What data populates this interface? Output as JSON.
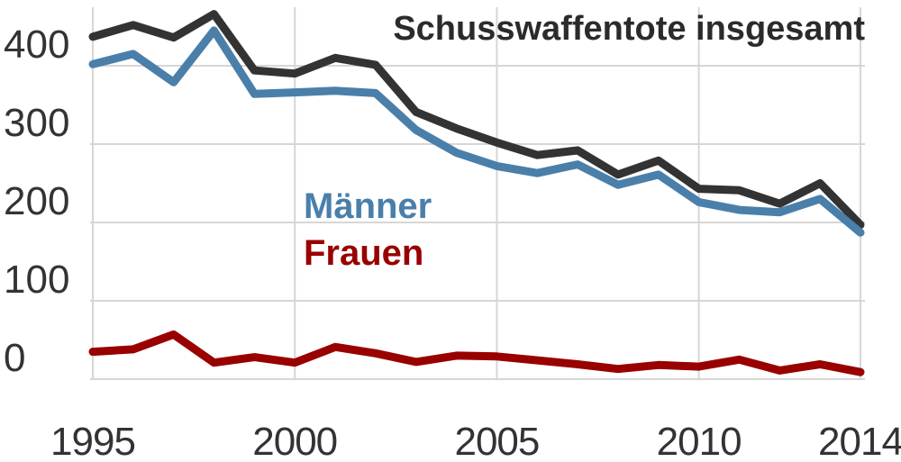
{
  "chart_data": {
    "type": "line",
    "title": "Schusswaffentote insgesamt",
    "x": [
      1995,
      1996,
      1997,
      1998,
      1999,
      2000,
      2001,
      2002,
      2003,
      2004,
      2005,
      2006,
      2007,
      2008,
      2009,
      2010,
      2011,
      2012,
      2013,
      2014
    ],
    "x_ticks": [
      "1995",
      "2000",
      "2005",
      "2010",
      "2014"
    ],
    "y_ticks": [
      "400",
      "300",
      "200",
      "100",
      "0"
    ],
    "ylim": [
      -50,
      470
    ],
    "grid": true,
    "series": [
      {
        "name": "Schusswaffentote insgesamt",
        "color": "#333333",
        "values": [
          437,
          452,
          436,
          466,
          394,
          390,
          410,
          401,
          341,
          320,
          302,
          286,
          292,
          261,
          279,
          243,
          241,
          224,
          250,
          197
        ]
      },
      {
        "name": "Männer",
        "color": "#4a7faa",
        "values": [
          402,
          415,
          379,
          445,
          364,
          366,
          368,
          365,
          318,
          289,
          272,
          263,
          274,
          248,
          261,
          226,
          216,
          213,
          230,
          187
        ]
      },
      {
        "name": "Frauen",
        "color": "#990000",
        "values": [
          35,
          38,
          57,
          21,
          28,
          21,
          41,
          33,
          22,
          30,
          29,
          24,
          19,
          13,
          18,
          16,
          25,
          11,
          19,
          9
        ]
      }
    ]
  }
}
